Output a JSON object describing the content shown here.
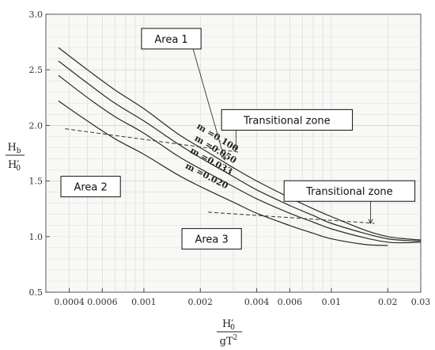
{
  "chart_data": {
    "type": "line",
    "title": "",
    "x_scale": "log",
    "xlim": [
      0.0003,
      0.03
    ],
    "ylim": [
      0.5,
      3.0
    ],
    "grid": true,
    "xlabel": {
      "num": "H",
      "num_sub": "0",
      "num_prime": "′",
      "den": "gT",
      "den_sup": "2"
    },
    "ylabel": {
      "num": "H",
      "num_sub": "b",
      "den": "H",
      "den_sub": "0",
      "den_prime": "′"
    },
    "x_ticks": [
      {
        "value": 0.0004,
        "label": "0.0004"
      },
      {
        "value": 0.0006,
        "label": "0.0006"
      },
      {
        "value": 0.001,
        "label": "0.001"
      },
      {
        "value": 0.002,
        "label": "0.002"
      },
      {
        "value": 0.004,
        "label": "0.004"
      },
      {
        "value": 0.006,
        "label": "0.006"
      },
      {
        "value": 0.01,
        "label": "0.01"
      },
      {
        "value": 0.02,
        "label": "0.02"
      },
      {
        "value": 0.03,
        "label": "0.03"
      }
    ],
    "y_ticks": [
      {
        "value": 0.5,
        "label": "0.5"
      },
      {
        "value": 1.0,
        "label": "1.0"
      },
      {
        "value": 1.5,
        "label": "1.5"
      },
      {
        "value": 2.0,
        "label": "2.0"
      },
      {
        "value": 2.5,
        "label": "2.5"
      },
      {
        "value": 3.0,
        "label": "3.0"
      }
    ],
    "series": [
      {
        "name": "m =0.100",
        "x": [
          0.00035,
          0.0005,
          0.0007,
          0.001,
          0.0015,
          0.002,
          0.003,
          0.004,
          0.006,
          0.008,
          0.01,
          0.015,
          0.02,
          0.025,
          0.03
        ],
        "y": [
          2.7,
          2.5,
          2.32,
          2.15,
          1.93,
          1.8,
          1.62,
          1.5,
          1.35,
          1.25,
          1.18,
          1.06,
          1.0,
          0.98,
          0.97
        ],
        "label_pos": {
          "x": 0.0019,
          "y": 1.98
        }
      },
      {
        "name": "m =0.050",
        "x": [
          0.00035,
          0.0005,
          0.0007,
          0.001,
          0.0015,
          0.002,
          0.003,
          0.004,
          0.006,
          0.008,
          0.01,
          0.015,
          0.02,
          0.025,
          0.03
        ],
        "y": [
          2.58,
          2.38,
          2.2,
          2.04,
          1.84,
          1.71,
          1.54,
          1.42,
          1.28,
          1.19,
          1.12,
          1.03,
          0.98,
          0.965,
          0.96
        ],
        "label_pos": {
          "x": 0.00185,
          "y": 1.87
        }
      },
      {
        "name": "m =0.033",
        "x": [
          0.00035,
          0.0005,
          0.0007,
          0.001,
          0.0015,
          0.002,
          0.003,
          0.004,
          0.006,
          0.008,
          0.01,
          0.015,
          0.02,
          0.025,
          0.03
        ],
        "y": [
          2.45,
          2.25,
          2.08,
          1.93,
          1.73,
          1.61,
          1.45,
          1.34,
          1.21,
          1.13,
          1.07,
          0.99,
          0.95,
          0.945,
          0.95
        ],
        "label_pos": {
          "x": 0.00175,
          "y": 1.76
        }
      },
      {
        "name": "m =0.020",
        "x": [
          0.00035,
          0.0005,
          0.0007,
          0.001,
          0.0015,
          0.002,
          0.003,
          0.004,
          0.006,
          0.008,
          0.01,
          0.015,
          0.02
        ],
        "y": [
          2.22,
          2.04,
          1.88,
          1.74,
          1.56,
          1.45,
          1.31,
          1.21,
          1.1,
          1.03,
          0.98,
          0.93,
          0.92
        ],
        "label_pos": {
          "x": 0.00165,
          "y": 1.62
        }
      }
    ],
    "dashed_lines": [
      {
        "x": [
          0.00038,
          0.0032
        ],
        "y": [
          1.97,
          1.76
        ]
      },
      {
        "x": [
          0.0022,
          0.017
        ],
        "y": [
          1.22,
          1.12
        ]
      }
    ],
    "annotations": [
      {
        "text": "Area 1",
        "box_center": {
          "x": 0.0014,
          "y": 2.78
        },
        "arrow_to": {
          "x": 0.0027,
          "y": 1.69
        }
      },
      {
        "text": "Transitional zone",
        "box_center": {
          "x": 0.0058,
          "y": 2.05
        },
        "arrow_to": {
          "x": 0.0031,
          "y": 1.78
        }
      },
      {
        "text": "Area 2",
        "box_center": {
          "x": 0.00052,
          "y": 1.45
        }
      },
      {
        "text": "Transitional zone",
        "box_center": {
          "x": 0.0125,
          "y": 1.41
        },
        "arrow_to": {
          "x": 0.0162,
          "y": 1.12
        }
      },
      {
        "text": "Area 3",
        "box_center": {
          "x": 0.0023,
          "y": 0.98
        }
      }
    ]
  }
}
